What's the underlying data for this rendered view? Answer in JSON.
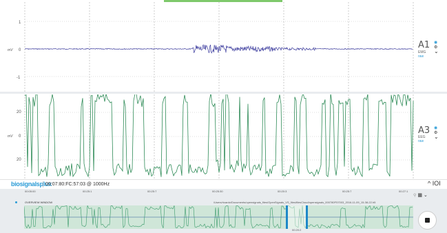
{
  "channels": [
    {
      "id": "A1",
      "name": "A1",
      "type": "EMG",
      "sub": "raw",
      "unit": "mV",
      "yticks": [
        "1",
        "0",
        "-1"
      ]
    },
    {
      "id": "A3",
      "name": "A3",
      "type": "EEG",
      "sub": "raw",
      "unit": "mV",
      "yticks": [
        "20",
        "0",
        "20"
      ]
    }
  ],
  "status": {
    "logo": "biosignalsplux",
    "device": "00:07:80:FC:57:03 @ 1000Hz",
    "collapse_label": "^ IOI"
  },
  "overview": {
    "timeline": [
      "00:05:00",
      "00:25:1",
      "00:25:7",
      "00:25:30",
      "00:20:3",
      "00:25:7",
      "00:27:1"
    ],
    "title": "OVERVIEW WINDOW",
    "path": "/Users/ricardo/Documents/opensignals_files/OpenSignals_VS_files/filesCloud/opensignals_000780F57003_2016-11-09_15-38-22.h5",
    "position": "00:20:2"
  },
  "colors": {
    "emg_line": "#3b3b9e",
    "eeg_line": "#2e8b57",
    "accent": "#2a9bd6",
    "grid": "#aaaaaa"
  },
  "icons": [
    "eye-icon",
    "settings-icon",
    "chevron-down-icon",
    "grid-icon",
    "stop-icon"
  ]
}
